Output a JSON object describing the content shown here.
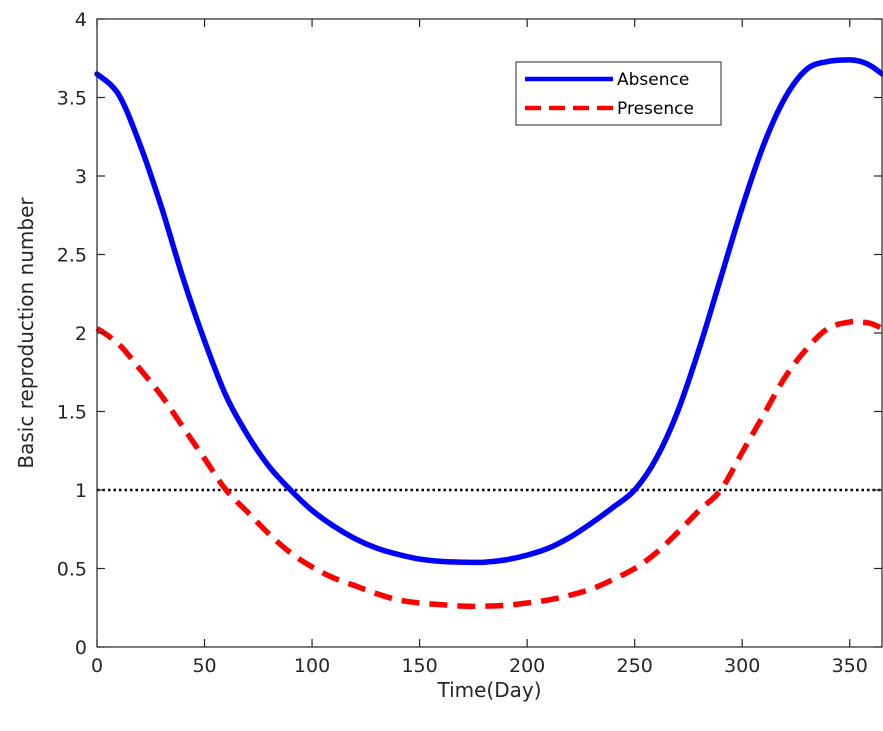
{
  "chart_data": {
    "type": "line",
    "xlabel": "Time(Day)",
    "ylabel": "Basic reproduction number",
    "xlim": [
      0,
      365
    ],
    "ylim": [
      0,
      4
    ],
    "xticks": [
      0,
      50,
      100,
      150,
      200,
      250,
      300,
      350
    ],
    "yticks": [
      0,
      0.5,
      1,
      1.5,
      2,
      2.5,
      3,
      3.5,
      4
    ],
    "ytick_labels": [
      "0",
      "0.5",
      "1",
      "1.5",
      "2",
      "2.5",
      "3",
      "3.5",
      "4"
    ],
    "grid": false,
    "legend_position": "top-right",
    "x": [
      0,
      10,
      20,
      30,
      40,
      50,
      60,
      70,
      80,
      90,
      100,
      110,
      120,
      130,
      140,
      150,
      160,
      170,
      180,
      190,
      200,
      210,
      220,
      230,
      240,
      250,
      260,
      270,
      280,
      290,
      300,
      310,
      320,
      330,
      340,
      350,
      355,
      360,
      365
    ],
    "series": [
      {
        "name": "Absence",
        "color": "#0000ff",
        "style": "solid",
        "values": [
          3.65,
          3.52,
          3.2,
          2.8,
          2.35,
          1.95,
          1.6,
          1.35,
          1.15,
          1.0,
          0.87,
          0.77,
          0.69,
          0.63,
          0.59,
          0.56,
          0.545,
          0.54,
          0.54,
          0.555,
          0.585,
          0.63,
          0.7,
          0.79,
          0.89,
          1.0,
          1.2,
          1.5,
          1.9,
          2.35,
          2.8,
          3.2,
          3.5,
          3.68,
          3.73,
          3.74,
          3.73,
          3.7,
          3.65
        ]
      },
      {
        "name": "Presence",
        "color": "#ff0000",
        "style": "dashed",
        "values": [
          2.03,
          1.93,
          1.77,
          1.6,
          1.4,
          1.2,
          1.0,
          0.86,
          0.72,
          0.6,
          0.51,
          0.44,
          0.39,
          0.34,
          0.3,
          0.28,
          0.27,
          0.26,
          0.26,
          0.265,
          0.28,
          0.3,
          0.33,
          0.37,
          0.43,
          0.5,
          0.6,
          0.73,
          0.87,
          1.0,
          1.24,
          1.48,
          1.72,
          1.9,
          2.03,
          2.07,
          2.07,
          2.06,
          2.03
        ]
      }
    ],
    "reference_line": {
      "y": 1,
      "color": "#000000",
      "style": "dotted"
    }
  }
}
